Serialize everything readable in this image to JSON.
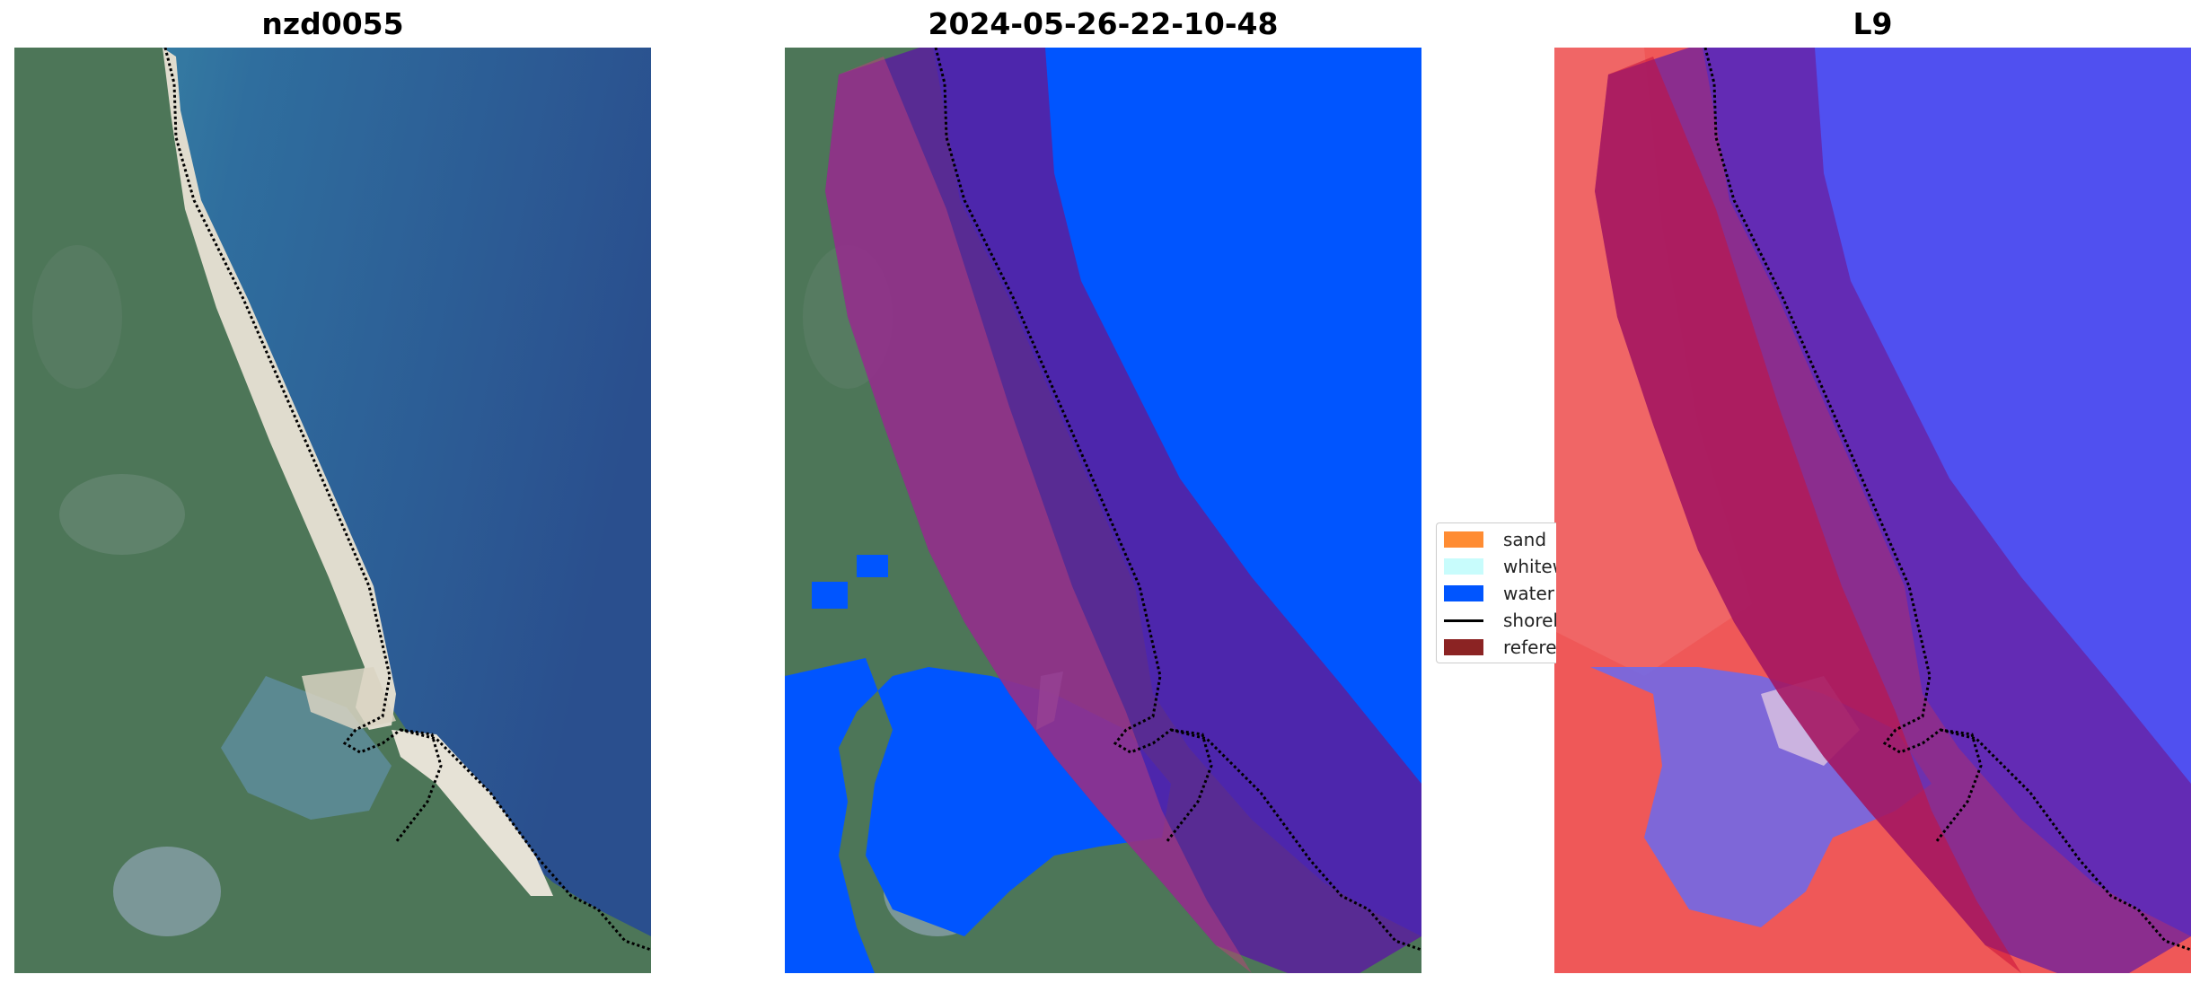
{
  "panels": [
    {
      "title": "nzd0055"
    },
    {
      "title": "2024-05-26-22-10-48"
    },
    {
      "title": "L9"
    }
  ],
  "legend": {
    "items": [
      {
        "label": "sand",
        "color": "#ff8c33"
      },
      {
        "label": "whitewater",
        "color": "#c8fcfc"
      },
      {
        "label": "water",
        "color": "#0055ff"
      },
      {
        "label": "shoreline",
        "color": "#000000"
      },
      {
        "label": "reference shoreline buffer",
        "color": "#8b2323"
      }
    ]
  },
  "colors": {
    "ocean_deep": "#2c5691",
    "ocean_shallow": "#3f90a8",
    "land_green": "#4d7658",
    "beach": "#e6e2d6",
    "water_class": "#0055ff",
    "buffer_overlay": "#5a1f9e",
    "index_red": "#ef4040",
    "index_blue": "#5050f0"
  }
}
